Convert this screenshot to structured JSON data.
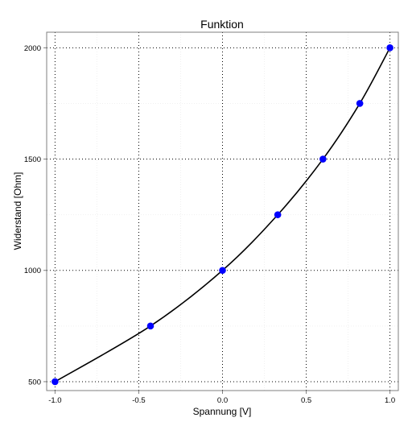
{
  "chart_data": {
    "type": "line",
    "title": "Funktion",
    "xlabel": "Spannung [V]",
    "ylabel": "Widerstand [Ohm]",
    "xlim": [
      -1.05,
      1.05
    ],
    "ylim": [
      460,
      2070
    ],
    "x_ticks": [
      -1.0,
      -0.5,
      0.0,
      0.5,
      1.0
    ],
    "x_tick_labels": [
      "-1.0",
      "-0.5",
      "0.0",
      "0.5",
      "1.0"
    ],
    "y_ticks": [
      500,
      1000,
      1500,
      2000
    ],
    "y_tick_labels": [
      "500",
      "1000",
      "1500",
      "2000"
    ],
    "grid": true,
    "series": [
      {
        "x": [
          -1.0,
          -0.43,
          0.0,
          0.33,
          0.6,
          0.82,
          1.0
        ],
        "y": [
          500,
          750,
          1000,
          1250,
          1500,
          1750,
          2000
        ],
        "line_color": "#000000",
        "marker_color": "#0000ff"
      }
    ]
  }
}
